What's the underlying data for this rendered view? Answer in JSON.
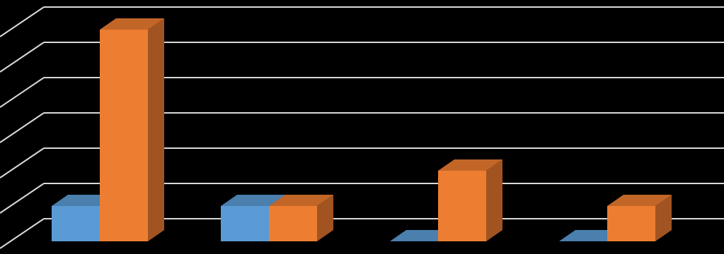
{
  "chart_data": {
    "type": "bar3d",
    "categories": [
      null,
      null,
      null,
      null
    ],
    "series": [
      {
        "color": "#5b9bd5",
        "values": [
          1,
          1,
          0,
          0
        ]
      },
      {
        "color": "#ed7d31",
        "values": [
          6,
          1,
          2,
          1
        ]
      }
    ],
    "ylim": [
      0,
      6
    ],
    "yticks": [
      0,
      1,
      2,
      3,
      4,
      5,
      6
    ],
    "grid": true,
    "background": "#000000",
    "grid_color": "#d9d9d9"
  }
}
